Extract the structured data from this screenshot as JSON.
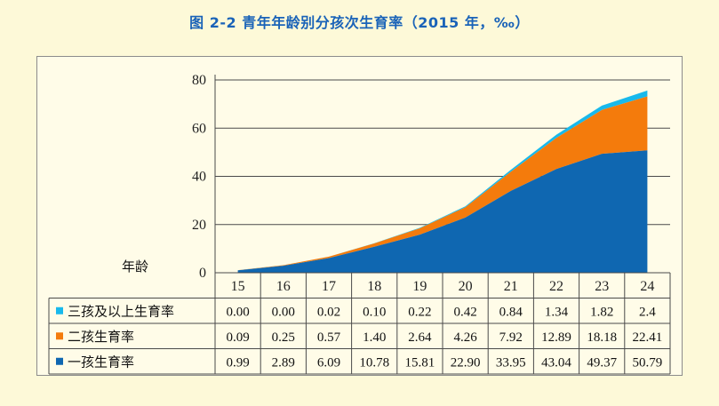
{
  "title": "图 2-2  青年年龄别分孩次生育率（2015 年，‰）",
  "chart_data": {
    "type": "area",
    "stacked": true,
    "xlabel": "年龄",
    "x": [
      "15",
      "16",
      "17",
      "18",
      "19",
      "20",
      "21",
      "22",
      "23",
      "24"
    ],
    "ylim": [
      0,
      80
    ],
    "yticks": [
      "0",
      "20",
      "40",
      "60",
      "80"
    ],
    "grid": true,
    "series": [
      {
        "name": "一孩生育率",
        "color": "#0f67b1",
        "values": [
          0.99,
          2.89,
          6.09,
          10.78,
          15.81,
          22.9,
          33.95,
          43.04,
          49.37,
          50.79
        ],
        "labels": [
          "0.99",
          "2.89",
          "6.09",
          "10.78",
          "15.81",
          "22.90",
          "33.95",
          "43.04",
          "49.37",
          "50.79"
        ]
      },
      {
        "name": "二孩生育率",
        "color": "#f47b0c",
        "values": [
          0.09,
          0.25,
          0.57,
          1.4,
          2.64,
          4.26,
          7.92,
          12.89,
          18.18,
          22.41
        ],
        "labels": [
          "0.09",
          "0.25",
          "0.57",
          "1.40",
          "2.64",
          "4.26",
          "7.92",
          "12.89",
          "18.18",
          "22.41"
        ]
      },
      {
        "name": "三孩及以上生育率",
        "color": "#18b9ec",
        "values": [
          0.0,
          0.0,
          0.02,
          0.1,
          0.22,
          0.42,
          0.84,
          1.34,
          1.82,
          2.4
        ],
        "labels": [
          "0.00",
          "0.00",
          "0.02",
          "0.10",
          "0.22",
          "0.42",
          "0.84",
          "1.34",
          "1.82",
          "2.4"
        ]
      }
    ],
    "table_row_order": [
      2,
      1,
      0
    ]
  }
}
